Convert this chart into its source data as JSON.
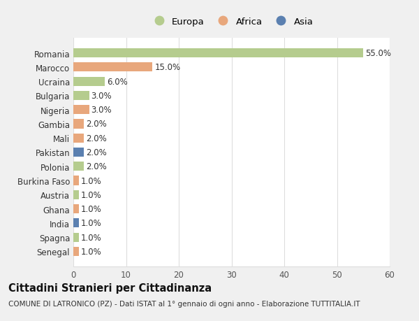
{
  "countries": [
    "Romania",
    "Marocco",
    "Ucraina",
    "Bulgaria",
    "Nigeria",
    "Gambia",
    "Mali",
    "Pakistan",
    "Polonia",
    "Burkina Faso",
    "Austria",
    "Ghana",
    "India",
    "Spagna",
    "Senegal"
  ],
  "values": [
    55.0,
    15.0,
    6.0,
    3.0,
    3.0,
    2.0,
    2.0,
    2.0,
    2.0,
    1.0,
    1.0,
    1.0,
    1.0,
    1.0,
    1.0
  ],
  "continents": [
    "Europa",
    "Africa",
    "Europa",
    "Europa",
    "Africa",
    "Africa",
    "Africa",
    "Asia",
    "Europa",
    "Africa",
    "Europa",
    "Africa",
    "Asia",
    "Europa",
    "Africa"
  ],
  "continent_colors": {
    "Europa": "#b5cc8e",
    "Africa": "#e8a77c",
    "Asia": "#5b80b0"
  },
  "legend_order": [
    "Europa",
    "Africa",
    "Asia"
  ],
  "title": "Cittadini Stranieri per Cittadinanza",
  "subtitle": "COMUNE DI LATRONICO (PZ) - Dati ISTAT al 1° gennaio di ogni anno - Elaborazione TUTTITALIA.IT",
  "xlim": [
    0,
    60
  ],
  "xticks": [
    0,
    10,
    20,
    30,
    40,
    50,
    60
  ],
  "background_color": "#f0f0f0",
  "plot_bg_color": "#ffffff",
  "grid_color": "#dddddd",
  "label_fontsize": 8.5,
  "value_fontsize": 8.5,
  "title_fontsize": 10.5,
  "subtitle_fontsize": 7.5,
  "legend_fontsize": 9.5
}
